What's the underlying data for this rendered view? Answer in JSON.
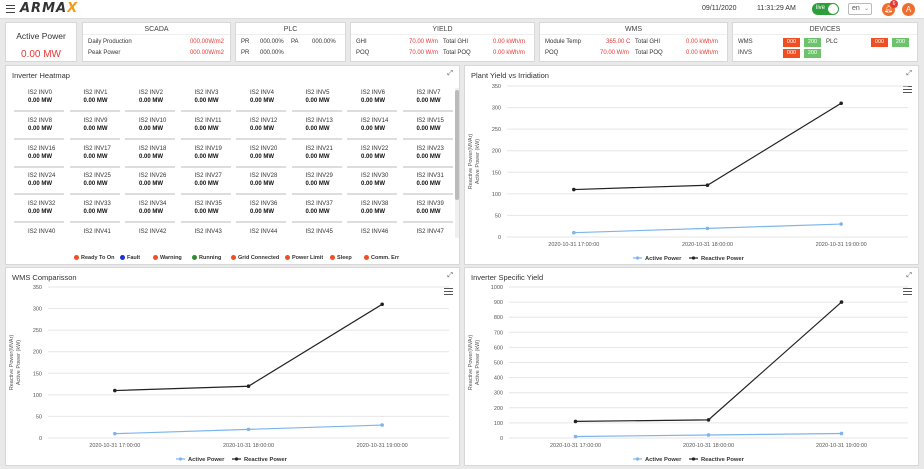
{
  "header": {
    "logo": "armax",
    "date": "09/11/2020",
    "time": "11:31:29 AM",
    "live_label": "live",
    "lang": "en",
    "notif_count": "6",
    "avatar_initial": "A"
  },
  "active_power": {
    "title": "Active Power",
    "value": "0.00 MW"
  },
  "scada": {
    "title": "SCADA",
    "rows": [
      {
        "label": "Daily Production",
        "value": "000.00W/m2"
      },
      {
        "label": "Peak Power",
        "value": "000.00W/m2"
      }
    ]
  },
  "plc": {
    "title": "PLC",
    "pr_label": "PR",
    "pr_value": "000.00%",
    "pa_label": "PA",
    "pa_value": "000.00%",
    "pr2_label": "PR",
    "pr2_value": "000.00%"
  },
  "yield": {
    "title": "YIELD",
    "ghi_label": "GHI",
    "ghi_value": "70.00 W/m",
    "total_ghi_label": "Total GHI",
    "total_ghi_value": "0.00 kWh/m",
    "poq_label": "POQ",
    "poq_value": "70.00 W/m",
    "total_poq_label": "Total POQ",
    "total_poq_value": "0.00 kWh/m"
  },
  "wms": {
    "title": "WMS",
    "mt_label": "Module Temp",
    "mt_value": "365.00 C",
    "tg_label": "Total GHI",
    "tg_value": "0.00 kWh/m",
    "poq_label": "POQ",
    "poq_value": "70.00 W/m",
    "tp_label": "Total POQ",
    "tp_value": "0.00 kWh/m"
  },
  "devices": {
    "title": "DEVICES",
    "wms_label": "WMS",
    "plc_label": "PLC",
    "invs_label": "INVS",
    "wms_red": "000",
    "wms_green": "200",
    "plc_red": "000",
    "plc_green": "200",
    "invs_red": "000",
    "invs_green": "200",
    "red_color": "#f04e23",
    "green_color": "#6cc36c"
  },
  "heatmap": {
    "title": "Inverter Heatmap",
    "cells": [
      {
        "name": "IS2 INV0",
        "value": "0.00 MW"
      },
      {
        "name": "IS2 INV1",
        "value": "0.00 MW"
      },
      {
        "name": "IS2 INV2",
        "value": "0.00 MW"
      },
      {
        "name": "IS2 INV3",
        "value": "0.00 MW"
      },
      {
        "name": "IS2 INV4",
        "value": "0.00 MW"
      },
      {
        "name": "IS2 INV5",
        "value": "0.00 MW"
      },
      {
        "name": "IS2 INV6",
        "value": "0.00 MW"
      },
      {
        "name": "IS2 INV7",
        "value": "0.00 MW"
      },
      {
        "name": "IS2 INV8",
        "value": "0.00 MW"
      },
      {
        "name": "IS2 INV9",
        "value": "0.00 MW"
      },
      {
        "name": "IS2 INV10",
        "value": "0.00 MW"
      },
      {
        "name": "IS2 INV11",
        "value": "0.00 MW"
      },
      {
        "name": "IS2 INV12",
        "value": "0.00 MW"
      },
      {
        "name": "IS2 INV13",
        "value": "0.00 MW"
      },
      {
        "name": "IS2 INV14",
        "value": "0.00 MW"
      },
      {
        "name": "IS2 INV15",
        "value": "0.00 MW"
      },
      {
        "name": "IS2 INV16",
        "value": "0.00 MW"
      },
      {
        "name": "IS2 INV17",
        "value": "0.00 MW"
      },
      {
        "name": "IS2 INV18",
        "value": "0.00 MW"
      },
      {
        "name": "IS2 INV19",
        "value": "0.00 MW"
      },
      {
        "name": "IS2 INV20",
        "value": "0.00 MW"
      },
      {
        "name": "IS2 INV21",
        "value": "0.00 MW"
      },
      {
        "name": "IS2 INV22",
        "value": "0.00 MW"
      },
      {
        "name": "IS2 INV23",
        "value": "0.00 MW"
      },
      {
        "name": "IS2 INV24",
        "value": "0.00 MW"
      },
      {
        "name": "IS2 INV25",
        "value": "0.00 MW"
      },
      {
        "name": "IS2 INV26",
        "value": "0.00 MW"
      },
      {
        "name": "IS2 INV27",
        "value": "0.00 MW"
      },
      {
        "name": "IS2 INV28",
        "value": "0.00 MW"
      },
      {
        "name": "IS2 INV29",
        "value": "0.00 MW"
      },
      {
        "name": "IS2 INV30",
        "value": "0.00 MW"
      },
      {
        "name": "IS2 INV31",
        "value": "0.00 MW"
      },
      {
        "name": "IS2 INV32",
        "value": "0.00 MW"
      },
      {
        "name": "IS2 INV33",
        "value": "0.00 MW"
      },
      {
        "name": "IS2 INV34",
        "value": "0.00 MW"
      },
      {
        "name": "IS2 INV35",
        "value": "0.00 MW"
      },
      {
        "name": "IS2 INV36",
        "value": "0.00 MW"
      },
      {
        "name": "IS2 INV37",
        "value": "0.00 MW"
      },
      {
        "name": "IS2 INV38",
        "value": "0.00 MW"
      },
      {
        "name": "IS2 INV39",
        "value": "0.00 MW"
      },
      {
        "name": "IS2 INV40",
        "value": ""
      },
      {
        "name": "IS2 INV41",
        "value": ""
      },
      {
        "name": "IS2 INV42",
        "value": ""
      },
      {
        "name": "IS2 INV43",
        "value": ""
      },
      {
        "name": "IS2 INV44",
        "value": ""
      },
      {
        "name": "IS2 INV45",
        "value": ""
      },
      {
        "name": "IS2 INV46",
        "value": ""
      },
      {
        "name": "IS2 INV47",
        "value": ""
      }
    ],
    "legend": [
      {
        "label": "Ready To On",
        "color": "#f04e23"
      },
      {
        "label": "Fault",
        "color": "#1e2fd6"
      },
      {
        "label": "Warning",
        "color": "#f04e23"
      },
      {
        "label": "Running",
        "color": "#2e8b2e"
      },
      {
        "label": "Grid Connected",
        "color": "#f04e23"
      },
      {
        "label": "Power Limit",
        "color": "#f04e23"
      },
      {
        "label": "Sleep",
        "color": "#f04e23"
      },
      {
        "label": "Comm. Err",
        "color": "#f04e23"
      }
    ]
  },
  "chart_data": [
    {
      "title": "Plant Yield vs Irridiation",
      "type": "line",
      "ylabel": "Reactive Power(MVAr)",
      "ylabel2": "Active Power (kW)",
      "ylim": [
        0,
        350
      ],
      "yticks": [
        "0",
        "50",
        "100",
        "150",
        "200",
        "250",
        "300",
        "350"
      ],
      "x": [
        "2020-10-31 17:00:00",
        "2020-10-31 18:00:00",
        "2020-10-31 19:00:00"
      ],
      "series": [
        {
          "name": "Active Power",
          "color": "#7cb5ec",
          "values": [
            10,
            20,
            30
          ]
        },
        {
          "name": "Reactive Power",
          "color": "#222222",
          "values": [
            110,
            120,
            310
          ]
        }
      ]
    },
    {
      "title": "WMS Comparisson",
      "type": "line",
      "ylabel": "Reactive Power(MVAr)",
      "ylabel2": "Active Power (kW)",
      "ylim": [
        0,
        350
      ],
      "yticks": [
        "0",
        "50",
        "100",
        "150",
        "200",
        "250",
        "300",
        "350"
      ],
      "x": [
        "2020-10-31 17:00:00",
        "2020-10-31 18:00:00",
        "2020-10-31 19:00:00"
      ],
      "series": [
        {
          "name": "Active Power",
          "color": "#7cb5ec",
          "values": [
            10,
            20,
            30
          ]
        },
        {
          "name": "Reactive Power",
          "color": "#222222",
          "values": [
            110,
            120,
            310
          ]
        }
      ]
    },
    {
      "title": "Inverter Specific Yield",
      "type": "line",
      "ylabel": "Reactive Power(MVAr)",
      "ylabel2": "Active Power (kW)",
      "ylim": [
        0,
        1000
      ],
      "yticks": [
        "0",
        "100",
        "200",
        "300",
        "400",
        "500",
        "600",
        "700",
        "800",
        "900",
        "1000"
      ],
      "x": [
        "2020-10-31 17:00:00",
        "2020-10-31 18:00:00",
        "2020-10-31 19:00:00"
      ],
      "series": [
        {
          "name": "Active Power",
          "color": "#7cb5ec",
          "values": [
            10,
            20,
            30
          ]
        },
        {
          "name": "Reactive Power",
          "color": "#222222",
          "values": [
            110,
            120,
            900
          ]
        }
      ]
    }
  ]
}
